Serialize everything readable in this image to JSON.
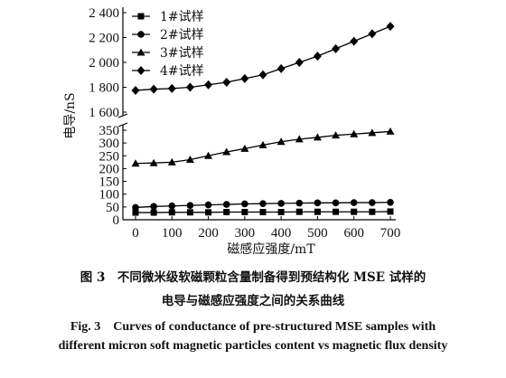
{
  "chart_data": {
    "type": "line",
    "xlabel": "磁感应强度/mT",
    "ylabel": "电导/nS",
    "x": [
      0,
      50,
      100,
      150,
      200,
      250,
      300,
      350,
      400,
      450,
      500,
      550,
      600,
      650,
      700
    ],
    "xticks": [
      0,
      100,
      200,
      300,
      400,
      500,
      600,
      700
    ],
    "xlim": [
      0,
      700
    ],
    "y_axis_break": true,
    "upper_panel": {
      "ylim": [
        1600,
        2400
      ],
      "yticks": [
        "1 600",
        "1 800",
        "2 000",
        "2 200",
        "2 400"
      ]
    },
    "lower_panel": {
      "ylim": [
        0,
        350
      ],
      "yticks": [
        "0",
        "50",
        "100",
        "150",
        "200",
        "250",
        "300",
        "350"
      ]
    },
    "legend_position": "top-left",
    "series": [
      {
        "name": "1#试样",
        "marker": "square",
        "panel": "lower",
        "values": [
          28,
          28,
          29,
          29,
          29,
          30,
          30,
          30,
          30,
          31,
          31,
          31,
          31,
          31,
          32
        ]
      },
      {
        "name": "2#试样",
        "marker": "circle",
        "panel": "lower",
        "values": [
          48,
          52,
          54,
          56,
          58,
          60,
          62,
          63,
          64,
          65,
          66,
          66,
          67,
          67,
          68
        ]
      },
      {
        "name": "3#试样",
        "marker": "triangle",
        "panel": "lower",
        "values": [
          220,
          222,
          225,
          235,
          250,
          265,
          278,
          292,
          305,
          315,
          322,
          330,
          335,
          340,
          345
        ]
      },
      {
        "name": "4#试样",
        "marker": "diamond",
        "panel": "upper",
        "values": [
          1775,
          1785,
          1790,
          1800,
          1820,
          1840,
          1870,
          1900,
          1950,
          2000,
          2050,
          2110,
          2170,
          2230,
          2290
        ]
      }
    ]
  },
  "caption": {
    "cn_line1": "图 3　不同微米级软磁颗粒含量制备得到预结构化 MSE 试样的",
    "cn_line2": "电导与磁感应强度之间的关系曲线",
    "en_line1": "Fig. 3　Curves of conductance of pre-structured MSE samples with",
    "en_line2": "different micron soft magnetic particles content vs magnetic flux density"
  }
}
